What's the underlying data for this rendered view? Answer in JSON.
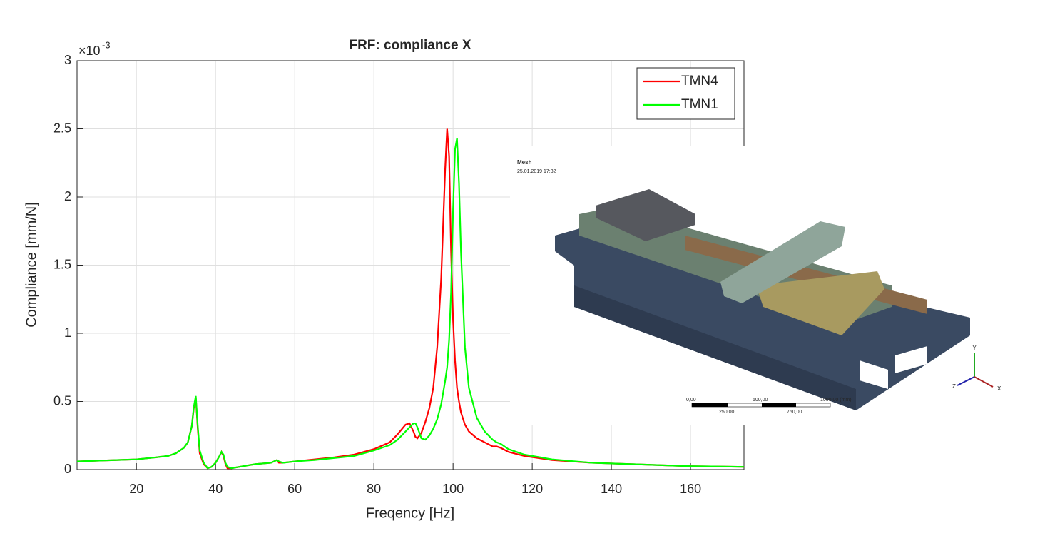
{
  "chart_data": {
    "type": "line",
    "title": "FRF: compliance X",
    "x_label": "Freqency [Hz]",
    "y_label": "Compliance [mm/N]",
    "y_scale_label": {
      "base": "×10",
      "exponent": "-3"
    },
    "x": [
      5,
      10,
      15,
      20,
      25,
      28,
      30,
      32,
      33,
      34,
      34.5,
      35,
      35.5,
      36,
      37,
      38,
      39,
      40,
      41,
      41.5,
      42,
      42.5,
      43,
      44,
      46,
      50,
      54,
      55.5,
      56,
      57,
      60,
      65,
      70,
      75,
      80,
      84,
      86,
      88,
      89,
      90,
      90.5,
      91,
      92,
      93,
      94,
      95,
      96,
      97,
      98,
      98.5,
      99,
      99.5,
      100,
      100.5,
      101,
      101.5,
      102,
      103,
      104,
      106,
      108,
      110,
      111,
      112,
      114,
      118,
      125,
      135,
      145,
      160,
      173.5
    ],
    "series": [
      {
        "name": "TMN4",
        "color": "#ff0000",
        "values": [
          0.06,
          0.065,
          0.07,
          0.075,
          0.09,
          0.1,
          0.12,
          0.16,
          0.2,
          0.32,
          0.45,
          0.53,
          0.3,
          0.12,
          0.04,
          0.01,
          0.02,
          0.05,
          0.1,
          0.13,
          0.1,
          0.04,
          0.01,
          0.01,
          0.02,
          0.04,
          0.05,
          0.07,
          0.05,
          0.05,
          0.06,
          0.075,
          0.09,
          0.11,
          0.15,
          0.2,
          0.26,
          0.33,
          0.34,
          0.28,
          0.24,
          0.23,
          0.27,
          0.35,
          0.45,
          0.6,
          0.9,
          1.4,
          2.2,
          2.5,
          2.3,
          1.6,
          1.1,
          0.8,
          0.6,
          0.5,
          0.42,
          0.33,
          0.28,
          0.23,
          0.2,
          0.17,
          0.17,
          0.16,
          0.13,
          0.1,
          0.07,
          0.05,
          0.04,
          0.025,
          0.02
        ]
      },
      {
        "name": "TMN1",
        "color": "#00ff00",
        "values": [
          0.06,
          0.065,
          0.07,
          0.075,
          0.09,
          0.1,
          0.12,
          0.16,
          0.2,
          0.32,
          0.46,
          0.54,
          0.32,
          0.14,
          0.05,
          0.01,
          0.02,
          0.05,
          0.1,
          0.13,
          0.11,
          0.05,
          0.02,
          0.01,
          0.02,
          0.04,
          0.05,
          0.07,
          0.06,
          0.05,
          0.06,
          0.07,
          0.085,
          0.1,
          0.14,
          0.18,
          0.22,
          0.28,
          0.31,
          0.34,
          0.34,
          0.31,
          0.23,
          0.22,
          0.25,
          0.3,
          0.37,
          0.48,
          0.65,
          0.75,
          0.95,
          1.3,
          1.9,
          2.35,
          2.43,
          2.1,
          1.6,
          0.9,
          0.6,
          0.38,
          0.28,
          0.22,
          0.2,
          0.19,
          0.15,
          0.11,
          0.075,
          0.05,
          0.04,
          0.025,
          0.02
        ]
      }
    ],
    "xlim": [
      5,
      173.5
    ],
    "xticks": [
      20,
      40,
      60,
      80,
      100,
      120,
      140,
      160
    ],
    "ylim": [
      0,
      3
    ],
    "yticks": [
      0,
      0.5,
      1,
      1.5,
      2,
      2.5,
      3
    ],
    "grid": true,
    "legend": "top-right"
  },
  "inset": {
    "title": "Mesh",
    "date": "25.01.2019 17:32",
    "scale_top": [
      "0,00",
      "500,00",
      "1000,00 (mm)"
    ],
    "scale_bottom": [
      "250,00",
      "750,00"
    ],
    "axes": [
      "Y",
      "Z",
      "X"
    ]
  }
}
